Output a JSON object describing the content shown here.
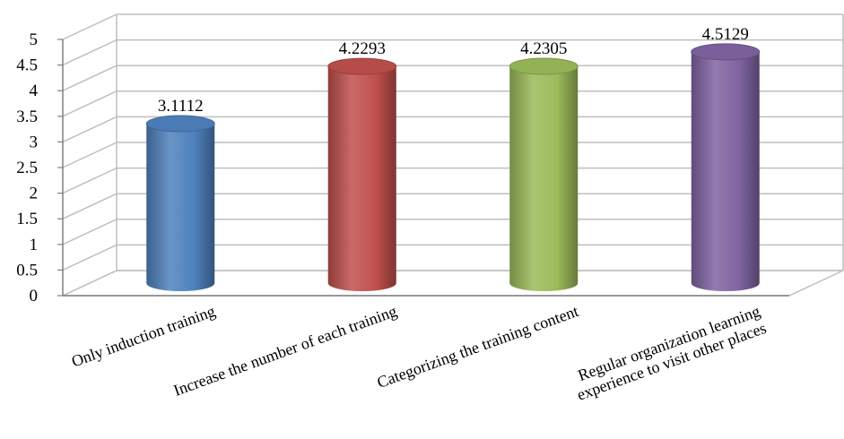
{
  "chart_data": {
    "type": "bar",
    "title": "",
    "xlabel": "",
    "ylabel": "",
    "categories": [
      [
        "Only induction training"
      ],
      [
        "Increase the number of each training"
      ],
      [
        "Categorizing the training content"
      ],
      [
        "Regular organization learning",
        "experience to visit other places"
      ]
    ],
    "values": [
      3.1112,
      4.2293,
      4.2305,
      4.5129
    ],
    "value_labels": [
      "3.1112",
      "4.2293",
      "4.2305",
      "4.5129"
    ],
    "yticks": [
      "0",
      "0.5",
      "1",
      "1.5",
      "2",
      "2.5",
      "3",
      "3.5",
      "4",
      "4.5",
      "5"
    ],
    "ylim": [
      0,
      5
    ],
    "grid": true,
    "style": "3d-cylinder",
    "colors": [
      "#4f81bd",
      "#c0504d",
      "#9bbb59",
      "#8064a2"
    ]
  }
}
